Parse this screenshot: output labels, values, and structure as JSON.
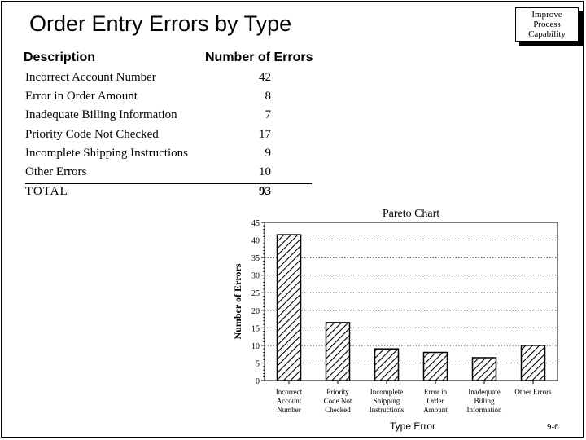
{
  "slide": {
    "title": "Order Entry Errors by Type",
    "badge_lines": [
      "Improve",
      "Process",
      "Capability"
    ],
    "page_number": "9-6"
  },
  "table": {
    "header_description": "Description",
    "header_count": "Number of Errors",
    "rows": [
      {
        "label": "Incorrect Account Number",
        "value": "42"
      },
      {
        "label": "Error in Order Amount",
        "value": "8"
      },
      {
        "label": "Inadequate Billing Information",
        "value": "7"
      },
      {
        "label": "Priority Code Not Checked",
        "value": "17"
      },
      {
        "label": "Incomplete Shipping Instructions",
        "value": "9"
      },
      {
        "label": "Other Errors",
        "value": "10"
      }
    ],
    "total_label": "TOTAL",
    "total_value": "93"
  },
  "chart_data": {
    "type": "bar",
    "title": "Pareto Chart",
    "xlabel": "Type Error",
    "ylabel": "Number of Errors",
    "categories": [
      [
        "Incorrect",
        "Account",
        "Number"
      ],
      [
        "Priority",
        "Code Not",
        "Checked"
      ],
      [
        "Incomplete",
        "Shipping",
        "Instructions"
      ],
      [
        "Error in",
        "Order",
        "Amount"
      ],
      [
        "Inadequate",
        "Billing",
        "Information"
      ],
      [
        "Other Errors"
      ]
    ],
    "values": [
      41.5,
      16.5,
      9,
      8,
      6.5,
      10
    ],
    "ylim": [
      0,
      45
    ],
    "yticks": [
      0,
      5,
      10,
      15,
      20,
      25,
      30,
      35,
      40,
      45
    ],
    "grid": true,
    "bar_fill": "diagonal-hatch",
    "colors": {
      "bar_stroke": "#000000",
      "grid": "#000000"
    }
  }
}
